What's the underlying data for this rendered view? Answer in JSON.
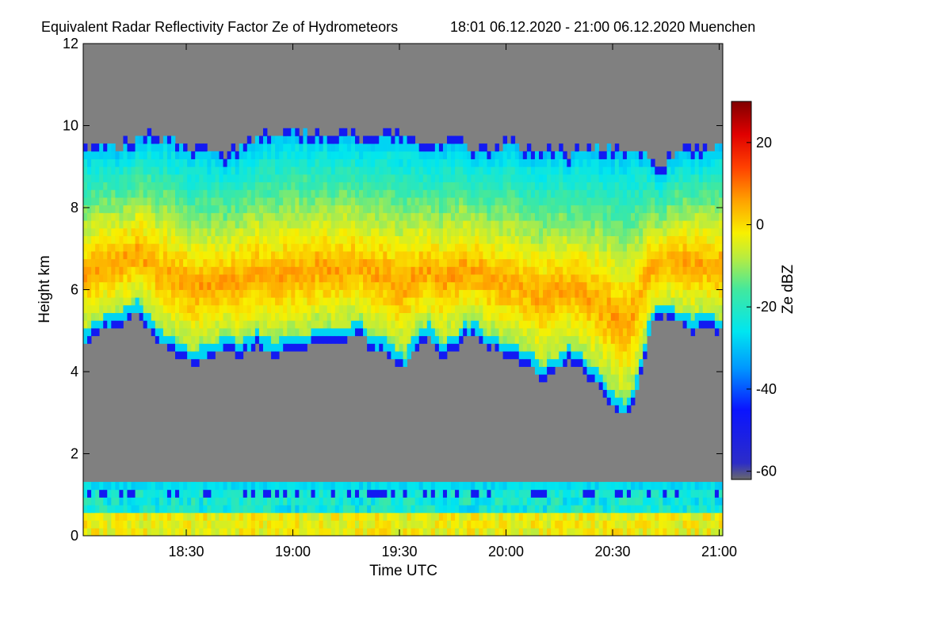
{
  "chart_data": {
    "type": "heatmap",
    "title": "Equivalent Radar Reflectivity Factor Ze of Hydrometeors",
    "subtitle": "18:01 06.12.2020 - 21:00 06.12.2020 Muenchen",
    "xlabel": "Time UTC",
    "ylabel": "Height km",
    "colorbar_label": "Ze dBZ",
    "x_range_minutes_utc": [
      1081,
      1261
    ],
    "x_ticks": [
      {
        "value": 1110,
        "label": "18:30"
      },
      {
        "value": 1140,
        "label": "19:00"
      },
      {
        "value": 1170,
        "label": "19:30"
      },
      {
        "value": 1200,
        "label": "20:00"
      },
      {
        "value": 1230,
        "label": "20:30"
      },
      {
        "value": 1260,
        "label": "21:00"
      }
    ],
    "ylim": [
      0,
      12
    ],
    "y_ticks": [
      {
        "value": 0,
        "label": "0"
      },
      {
        "value": 2,
        "label": "2"
      },
      {
        "value": 4,
        "label": "4"
      },
      {
        "value": 6,
        "label": "6"
      },
      {
        "value": 8,
        "label": "8"
      },
      {
        "value": 10,
        "label": "10"
      },
      {
        "value": 12,
        "label": "12"
      }
    ],
    "colorbar_range": [
      -62,
      30
    ],
    "colorbar_ticks": [
      {
        "value": 20,
        "label": "20"
      },
      {
        "value": 0,
        "label": "0"
      },
      {
        "value": -20,
        "label": "-20"
      },
      {
        "value": -40,
        "label": "-40"
      },
      {
        "value": -60,
        "label": "-60"
      }
    ],
    "colormap": [
      {
        "value": -62,
        "color": "#6a6a6a"
      },
      {
        "value": -58,
        "color": "#2c2cc8"
      },
      {
        "value": -45,
        "color": "#0a14ff"
      },
      {
        "value": -35,
        "color": "#0096ff"
      },
      {
        "value": -26,
        "color": "#00e6f0"
      },
      {
        "value": -16,
        "color": "#40e8a0"
      },
      {
        "value": -8,
        "color": "#b8ec40"
      },
      {
        "value": -2,
        "color": "#f8f000"
      },
      {
        "value": 6,
        "color": "#ffa000"
      },
      {
        "value": 14,
        "color": "#ff4000"
      },
      {
        "value": 22,
        "color": "#e00000"
      },
      {
        "value": 30,
        "color": "#800000"
      }
    ],
    "background_color": "#808080",
    "cloud_top_km": [
      [
        1081,
        9.5
      ],
      [
        1086,
        9.6
      ],
      [
        1091,
        9.5
      ],
      [
        1096,
        9.7
      ],
      [
        1101,
        9.8
      ],
      [
        1106,
        9.7
      ],
      [
        1110,
        9.5
      ],
      [
        1116,
        9.5
      ],
      [
        1121,
        9.2
      ],
      [
        1126,
        9.6
      ],
      [
        1131,
        9.7
      ],
      [
        1136,
        9.8
      ],
      [
        1141,
        9.9
      ],
      [
        1146,
        9.8
      ],
      [
        1150,
        9.7
      ],
      [
        1155,
        9.9
      ],
      [
        1159,
        9.6
      ],
      [
        1163,
        9.8
      ],
      [
        1167,
        9.9
      ],
      [
        1172,
        9.7
      ],
      [
        1177,
        9.6
      ],
      [
        1182,
        9.6
      ],
      [
        1186,
        9.7
      ],
      [
        1191,
        9.5
      ],
      [
        1195,
        9.4
      ],
      [
        1200,
        9.6
      ],
      [
        1205,
        9.5
      ],
      [
        1209,
        9.4
      ],
      [
        1214,
        9.5
      ],
      [
        1218,
        9.3
      ],
      [
        1223,
        9.6
      ],
      [
        1227,
        9.5
      ],
      [
        1232,
        9.5
      ],
      [
        1236,
        9.4
      ],
      [
        1241,
        9.3
      ],
      [
        1244,
        8.9
      ],
      [
        1246,
        9.3
      ],
      [
        1251,
        9.4
      ],
      [
        1256,
        9.5
      ],
      [
        1261,
        9.5
      ]
    ],
    "cloud_base_km": [
      [
        1081,
        4.6
      ],
      [
        1084,
        4.9
      ],
      [
        1088,
        5.1
      ],
      [
        1092,
        5.1
      ],
      [
        1096,
        5.4
      ],
      [
        1100,
        5.0
      ],
      [
        1104,
        4.6
      ],
      [
        1108,
        4.3
      ],
      [
        1112,
        4.2
      ],
      [
        1117,
        4.3
      ],
      [
        1121,
        4.5
      ],
      [
        1125,
        4.4
      ],
      [
        1130,
        4.6
      ],
      [
        1134,
        4.4
      ],
      [
        1138,
        4.5
      ],
      [
        1143,
        4.6
      ],
      [
        1148,
        4.8
      ],
      [
        1151,
        4.7
      ],
      [
        1155,
        4.8
      ],
      [
        1159,
        4.9
      ],
      [
        1163,
        4.5
      ],
      [
        1166,
        4.4
      ],
      [
        1169,
        4.2
      ],
      [
        1172,
        4.1
      ],
      [
        1175,
        4.6
      ],
      [
        1178,
        4.8
      ],
      [
        1182,
        4.4
      ],
      [
        1186,
        4.6
      ],
      [
        1190,
        4.9
      ],
      [
        1194,
        4.6
      ],
      [
        1198,
        4.5
      ],
      [
        1202,
        4.3
      ],
      [
        1206,
        4.2
      ],
      [
        1210,
        3.8
      ],
      [
        1214,
        4.0
      ],
      [
        1218,
        4.3
      ],
      [
        1222,
        4.0
      ],
      [
        1225,
        3.7
      ],
      [
        1228,
        3.3
      ],
      [
        1231,
        3.1
      ],
      [
        1233,
        2.9
      ],
      [
        1235,
        3.0
      ],
      [
        1237,
        3.5
      ],
      [
        1239,
        4.4
      ],
      [
        1241,
        5.2
      ],
      [
        1244,
        5.3
      ],
      [
        1248,
        5.2
      ],
      [
        1252,
        5.0
      ],
      [
        1256,
        5.1
      ],
      [
        1261,
        4.9
      ]
    ],
    "core_max_dbz": 8,
    "boundary_layer_top_km": 1.4
  }
}
